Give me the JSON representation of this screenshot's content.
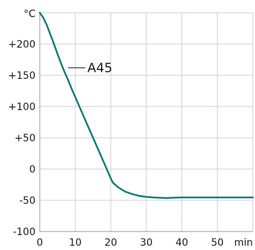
{
  "chart_data": {
    "type": "line",
    "title": "",
    "xlabel": "",
    "ylabel": "",
    "y_unit_label": "°C",
    "x_unit_label": "min",
    "xlim": [
      0,
      60
    ],
    "ylim": [
      -100,
      250
    ],
    "x_ticks": [
      "0",
      "10",
      "20",
      "30",
      "40",
      "50"
    ],
    "y_ticks": [
      "+200",
      "+150",
      "+100",
      "+50",
      "0",
      "-50",
      "-100"
    ],
    "grid": true,
    "line_color": "#127d7a",
    "series": [
      {
        "name": "A45",
        "x": [
          0,
          1,
          2,
          3,
          4,
          5,
          6,
          7,
          8,
          9,
          10,
          12,
          14,
          16,
          18,
          19,
          20,
          20.5,
          21,
          22,
          24,
          26,
          28,
          30,
          32,
          34,
          36,
          37,
          40,
          45,
          50,
          55,
          60
        ],
        "y": [
          250,
          242,
          230,
          215,
          200,
          184,
          169,
          155,
          142,
          128,
          115,
          89,
          63,
          37,
          11,
          -2,
          -15,
          -21,
          -24,
          -29,
          -36,
          -40,
          -43,
          -44.5,
          -45.5,
          -46,
          -46.5,
          -46,
          -45.5,
          -45.5,
          -45.5,
          -45.5,
          -45.5
        ]
      }
    ],
    "annotations": [
      {
        "text": "A45",
        "target_x": 8,
        "target_y": 162
      }
    ]
  }
}
